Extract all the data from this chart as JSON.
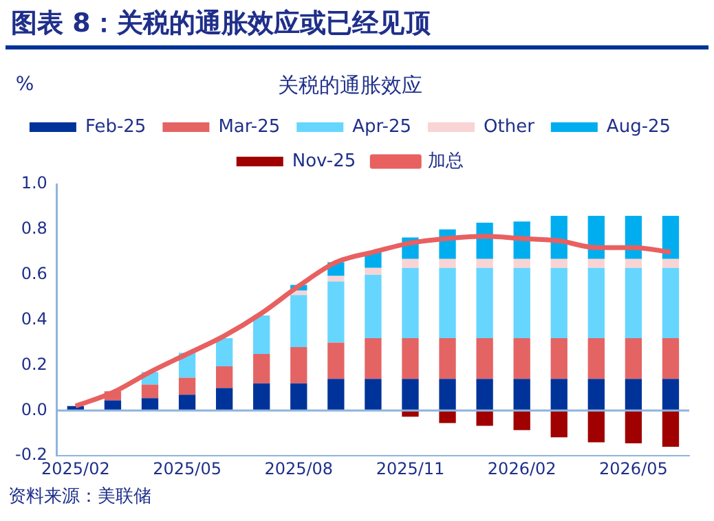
{
  "chart_data": {
    "type": "bar",
    "title": "图表 8：关税的通胀效应或已经见顶",
    "subtitle": "关税的通胀效应",
    "ylabel": "%",
    "annotations": [
      "资料来源：美联储"
    ],
    "categories": [
      "2025/02",
      null,
      null,
      "2025/05",
      null,
      null,
      "2025/08",
      null,
      null,
      "2025/11",
      null,
      null,
      "2026/02",
      null,
      null,
      "2026/05",
      null
    ],
    "stacked": true,
    "legend": "top",
    "grid": false,
    "ref_lines": [
      {
        "axis": "y",
        "value": 0,
        "color": "#8fb4de"
      }
    ],
    "ylim": [
      -0.2,
      1.0
    ],
    "yticks": [
      -0.2,
      {
        "value": 0,
        "label": "0.0"
      },
      0.2,
      0.4,
      0.6,
      0.8,
      {
        "value": 1,
        "label": "1.0"
      }
    ],
    "series": [
      {
        "name": "Feb-25",
        "color": "#003399",
        "values": [
          0.02,
          0.045,
          0.055,
          0.07,
          0.1,
          0.12,
          0.12,
          0.14,
          0.14,
          0.14,
          0.14,
          0.14,
          0.14,
          0.14,
          0.14,
          0.14,
          0.14
        ]
      },
      {
        "name": "Mar-25",
        "color": "#e46464",
        "values": [
          null,
          0.04,
          0.06,
          0.075,
          0.095,
          0.13,
          0.16,
          0.16,
          0.18,
          0.18,
          0.18,
          0.18,
          0.18,
          0.18,
          0.18,
          0.18,
          0.18
        ]
      },
      {
        "name": "Apr-25",
        "color": "#66d6ff",
        "values": [
          null,
          null,
          0.055,
          0.11,
          0.125,
          0.17,
          0.23,
          0.27,
          0.28,
          0.31,
          0.31,
          0.31,
          0.31,
          0.31,
          0.31,
          0.31,
          0.31
        ]
      },
      {
        "name": "Other",
        "color": "#fad4d4",
        "values": [
          null,
          null,
          null,
          null,
          null,
          null,
          0.02,
          0.025,
          0.03,
          0.04,
          0.04,
          0.04,
          0.04,
          0.04,
          0.04,
          0.04,
          0.04
        ]
      },
      {
        "name": "Aug-25",
        "color": "#00aeef",
        "values": [
          null,
          null,
          null,
          null,
          null,
          null,
          0.025,
          0.06,
          0.07,
          0.095,
          0.13,
          0.16,
          0.165,
          0.19,
          0.19,
          0.19,
          0.19
        ]
      },
      {
        "name": "Nov-25",
        "color": "#a00000",
        "values": [
          null,
          null,
          null,
          null,
          null,
          null,
          null,
          null,
          null,
          -0.027,
          -0.055,
          -0.067,
          -0.086,
          -0.118,
          -0.14,
          -0.145,
          -0.16
        ]
      },
      {
        "name": "加总",
        "type": "line",
        "color": "#e86060",
        "values": [
          0.02,
          0.08,
          0.17,
          0.25,
          0.33,
          0.43,
          0.55,
          0.655,
          0.7,
          0.74,
          0.76,
          0.77,
          0.76,
          0.75,
          0.72,
          0.72,
          0.7
        ]
      }
    ]
  }
}
